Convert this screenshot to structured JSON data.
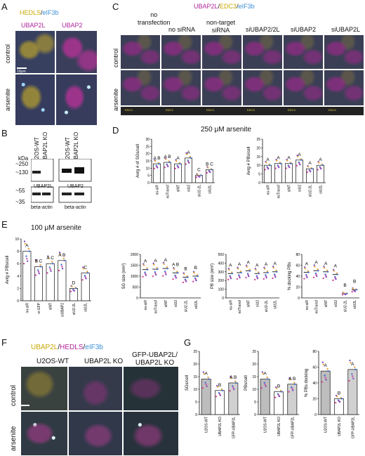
{
  "panel_labels": {
    "A": "A",
    "B": "B",
    "C": "C",
    "D": "D",
    "E": "E",
    "F": "F",
    "G": "G"
  },
  "panel_a": {
    "legend": {
      "part1": "HEDLS",
      "sep": "/",
      "part2": "eIF3b"
    },
    "columns": [
      "UBAP2L",
      "UBAP2"
    ],
    "rows": [
      "control",
      "arsenite"
    ],
    "scale_bar": "10μm",
    "colors": {
      "hedls": "#e8d23a",
      "eif3b": "#6fb7ff",
      "ubap": "#d23bb4"
    }
  },
  "panel_b": {
    "lanes_left": [
      "U2OS-WT",
      "UBAP2L KO"
    ],
    "lanes_right": [
      "U2OS-WT",
      "UBAP2L KO"
    ],
    "kda": "kDa",
    "markers_top": [
      "~250",
      "~130"
    ],
    "markers_bottom": [
      "~55",
      "~35"
    ],
    "blot_labels": [
      "UBAP2L",
      "UBAP2",
      "beta-actin",
      "beta-actin"
    ]
  },
  "panel_c": {
    "legend": {
      "a": "UBAP2L",
      "s1": "/",
      "b": "EDC3",
      "s2": "/",
      "c": "eIF3b"
    },
    "columns": [
      "no transfection",
      "no siRNA",
      "non-target siRNA",
      "siUBAP2/2L",
      "siUBAP2",
      "siUBAP2L"
    ],
    "column_lines": [
      [
        "no",
        "transfection"
      ],
      [
        "no siRNA"
      ],
      [
        "non-target",
        "siRNA"
      ],
      [
        "siUBAP2/2L"
      ],
      [
        "siUBAP2"
      ],
      [
        "siUBAP2L"
      ]
    ],
    "rows": [
      "control",
      "arsenite"
    ],
    "inset_tag": "EDC3"
  },
  "panel_d": {
    "title": "250 μM arsenite",
    "categories": [
      "no-siR",
      "noTransf",
      "siNT",
      "siU2",
      "siU2-2L",
      "siU2L"
    ]
  },
  "panel_e": {
    "title": "100 μM arsenite",
    "categories": [
      "no-siR",
      "si-GFP",
      "siNT",
      "siUBAP2",
      "siU2-2L",
      "siU2L"
    ]
  },
  "panel_f": {
    "legend": {
      "a": "UBAP2L",
      "s1": "/",
      "b": "HEDLS",
      "s2": "/",
      "c": "eIF3b"
    },
    "columns": [
      "U2OS-WT",
      "UBAP2L KO",
      "GFP-UBAP2L/",
      "UBAP2L KO"
    ],
    "rows": [
      "control",
      "arsenite"
    ]
  },
  "panel_g": {
    "categories": [
      "U2OS-WT",
      "UBAP2L KO",
      "GFP-UBAP2L"
    ]
  },
  "chart_data": [
    {
      "type": "bar",
      "panel": "D",
      "title": "250 μM arsenite",
      "ylabel": "Avrg # of SGs/cell",
      "categories": [
        "no-siR",
        "noTransf",
        "siNT",
        "siU2",
        "siU2-2L",
        "siU2L"
      ],
      "values": [
        13,
        14,
        13,
        17,
        5,
        9
      ],
      "letters": [
        "A B",
        "A B",
        "A",
        "A",
        "C",
        "B C"
      ],
      "ylim": [
        0,
        30
      ],
      "yticks": [
        0,
        5,
        10,
        15,
        20,
        25,
        30
      ]
    },
    {
      "type": "bar",
      "panel": "D",
      "ylabel": "Avrg # PBs/cell",
      "categories": [
        "no-siR",
        "noTransf",
        "siNT",
        "siU2",
        "siU2-2L",
        "siU2L"
      ],
      "values": [
        10,
        11,
        11,
        13,
        8,
        10
      ],
      "letters": [
        "A",
        "A",
        "A",
        "A",
        "A",
        "A"
      ],
      "ylim": [
        0,
        25
      ],
      "yticks": [
        0,
        5,
        10,
        15,
        20,
        25
      ]
    },
    {
      "type": "bar",
      "panel": "E",
      "title": "100 μM arsenite",
      "ylabel": "Avrg # PBs/cell",
      "categories": [
        "no-siR",
        "si-GFP",
        "siNT",
        "siUBAP2",
        "siU2-2L",
        "siU2L"
      ],
      "values": [
        8,
        5.5,
        6,
        6.5,
        2,
        4.5
      ],
      "letters": [
        "A",
        "B C",
        "A C",
        "A B",
        "D",
        "C"
      ],
      "ylim": [
        0,
        10
      ],
      "yticks": [
        0,
        2,
        4,
        6,
        8,
        10
      ]
    },
    {
      "type": "scatter",
      "panel": "E",
      "ylabel": "SG size (nm²)",
      "categories": [
        "no-siR",
        "noTransf",
        "siNT",
        "siU2",
        "siU2-2L",
        "siU2L"
      ],
      "values": [
        1300,
        1320,
        1350,
        1150,
        950,
        1000
      ],
      "letters": [
        "A",
        "A",
        "A",
        "A B",
        "B",
        "B"
      ],
      "ylim": [
        0,
        2000
      ],
      "yticks": [
        0,
        500,
        1000,
        1500,
        2000
      ]
    },
    {
      "type": "scatter",
      "panel": "E",
      "ylabel": "PB size (nm²)",
      "categories": [
        "no-siR",
        "noTransf",
        "siNT",
        "siU2",
        "siU2-2L",
        "siU2L"
      ],
      "values": [
        280,
        290,
        310,
        280,
        290,
        300
      ],
      "letters": [
        "A",
        "A",
        "A",
        "A",
        "A",
        "A"
      ],
      "ylim": [
        0,
        500
      ],
      "yticks": [
        0,
        100,
        200,
        300,
        400,
        500
      ]
    },
    {
      "type": "scatter",
      "panel": "E",
      "ylabel": "% docking PBs",
      "categories": [
        "no-siR",
        "noTransf",
        "siNT",
        "siU2",
        "siU2-2L",
        "siU2L"
      ],
      "values": [
        47,
        50,
        48,
        43,
        8,
        15
      ],
      "letters": [
        "A",
        "A",
        "A",
        "A",
        "B",
        "B"
      ],
      "ylim": [
        0,
        80
      ],
      "yticks": [
        0,
        20,
        40,
        60,
        80
      ]
    },
    {
      "type": "bar",
      "panel": "G",
      "ylabel": "SGs/cell",
      "categories": [
        "U2OS-WT",
        "UBAP2L KO",
        "GFP-UBAP2L"
      ],
      "values": [
        14,
        9.5,
        12.5
      ],
      "letters": [
        "A",
        "B",
        "A B"
      ],
      "ylim": [
        0,
        25
      ],
      "yticks": [
        0,
        5,
        10,
        15,
        20,
        25
      ]
    },
    {
      "type": "bar",
      "panel": "G",
      "ylabel": "PBs/cell",
      "categories": [
        "U2OS-WT",
        "UBAP2L KO",
        "GFP-UBAP2L"
      ],
      "values": [
        14,
        9,
        12
      ],
      "letters": [
        "A",
        "B",
        "A B"
      ],
      "ylim": [
        0,
        25
      ],
      "yticks": [
        0,
        5,
        10,
        15,
        20,
        25
      ]
    },
    {
      "type": "bar",
      "panel": "G",
      "ylabel": "% PBs docking",
      "categories": [
        "U2OS-WT",
        "UBAP2L KO",
        "GFP-UBAP2L"
      ],
      "values": [
        55,
        20,
        57
      ],
      "letters": [
        "A",
        "B",
        "A"
      ],
      "ylim": [
        0,
        80
      ],
      "yticks": [
        0,
        20,
        40,
        60,
        80
      ]
    }
  ]
}
